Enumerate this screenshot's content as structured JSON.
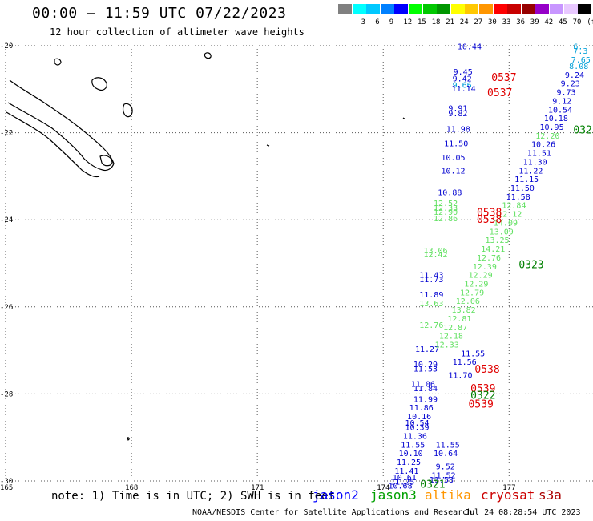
{
  "header": {
    "title": "00:00 — 11:59 UTC 07/22/2023",
    "subtitle": "12 hour collection of altimeter wave heights"
  },
  "legend": {
    "swatches": [
      {
        "color": "#808080",
        "label": ""
      },
      {
        "color": "#00ffff",
        "label": "3"
      },
      {
        "color": "#00c8ff",
        "label": "6"
      },
      {
        "color": "#0080ff",
        "label": "9"
      },
      {
        "color": "#0000ff",
        "label": "12"
      },
      {
        "color": "#00ff00",
        "label": "15"
      },
      {
        "color": "#00c800",
        "label": "18"
      },
      {
        "color": "#009600",
        "label": "21"
      },
      {
        "color": "#ffff00",
        "label": "24"
      },
      {
        "color": "#ffc800",
        "label": "27"
      },
      {
        "color": "#ff9600",
        "label": "30"
      },
      {
        "color": "#ff0000",
        "label": "33"
      },
      {
        "color": "#c80000",
        "label": "36"
      },
      {
        "color": "#960000",
        "label": "39"
      },
      {
        "color": "#9600c8",
        "label": "42"
      },
      {
        "color": "#c896ff",
        "label": "45"
      },
      {
        "color": "#e8c8ff",
        "label": "70"
      },
      {
        "color": "#000000",
        "label": "(ft)"
      }
    ]
  },
  "footer": {
    "note": "note: 1) Time is in UTC; 2) SWH is in feet",
    "satellites": [
      {
        "name": "jason2",
        "color": "#0000ff"
      },
      {
        "name": "jason3",
        "color": "#00a000"
      },
      {
        "name": "altika",
        "color": "#ff9600"
      },
      {
        "name": "cryosat",
        "color": "#cc0000"
      },
      {
        "name": "s3a",
        "color": "#aa0000"
      }
    ],
    "credit": "NOAA/NESDIS Center for Satellite Applications and Research",
    "timestamp": "Jul 24 08:28:54 UTC 2023"
  },
  "colors": {
    "blue": "#0000d0",
    "lightblue": "#00a0d8",
    "green": "#60e060",
    "darkgreen": "#008000",
    "red": "#e00000"
  },
  "chart_data": {
    "type": "scatter",
    "xlim": [
      165,
      179
    ],
    "ylim": [
      -30,
      -20
    ],
    "x_ticks": [
      {
        "value": 165,
        "label": "165"
      },
      {
        "value": 168,
        "label": "168"
      },
      {
        "value": 171,
        "label": "171"
      },
      {
        "value": 174,
        "label": "174"
      },
      {
        "value": 177,
        "label": "177"
      }
    ],
    "y_ticks": [
      {
        "value": -20,
        "label": "-20"
      },
      {
        "value": -22,
        "label": "-22"
      },
      {
        "value": -24,
        "label": "-24"
      },
      {
        "value": -26,
        "label": "-26"
      },
      {
        "value": -28,
        "label": "-28"
      },
      {
        "value": -30,
        "label": "-30"
      }
    ],
    "grid": true,
    "tracks": [
      {
        "name": "track-west",
        "labels": [
          {
            "lon": 175.77,
            "lat": -20.01,
            "text": "10.44",
            "color": "blue"
          },
          {
            "lon": 175.67,
            "lat": -20.59,
            "text": "9.45",
            "color": "blue"
          },
          {
            "lon": 175.65,
            "lat": -20.75,
            "text": "9.42",
            "color": "blue"
          },
          {
            "lon": 175.65,
            "lat": -20.89,
            "text": "9.66",
            "color": "lightblue"
          },
          {
            "lon": 175.63,
            "lat": -20.98,
            "text": "11.14",
            "color": "blue"
          },
          {
            "lon": 175.55,
            "lat": -21.43,
            "text": "9.91",
            "color": "blue"
          },
          {
            "lon": 175.55,
            "lat": -21.55,
            "text": "9.82",
            "color": "blue"
          },
          {
            "lon": 175.5,
            "lat": -21.91,
            "text": "11.98",
            "color": "blue"
          },
          {
            "lon": 175.45,
            "lat": -22.24,
            "text": "11.50",
            "color": "blue"
          },
          {
            "lon": 175.38,
            "lat": -22.56,
            "text": "10.05",
            "color": "blue"
          },
          {
            "lon": 175.38,
            "lat": -22.86,
            "text": "10.12",
            "color": "blue"
          },
          {
            "lon": 175.3,
            "lat": -23.36,
            "text": "10.88",
            "color": "blue"
          },
          {
            "lon": 175.2,
            "lat": -23.61,
            "text": "12.52",
            "color": "green"
          },
          {
            "lon": 175.2,
            "lat": -23.72,
            "text": "12.33",
            "color": "green"
          },
          {
            "lon": 175.2,
            "lat": -23.81,
            "text": "12.90",
            "color": "green"
          },
          {
            "lon": 175.2,
            "lat": -23.96,
            "text": "12.86",
            "color": "green"
          },
          {
            "lon": 174.96,
            "lat": -24.7,
            "text": "13.06",
            "color": "green"
          },
          {
            "lon": 174.96,
            "lat": -24.79,
            "text": "12.42",
            "color": "green"
          },
          {
            "lon": 174.86,
            "lat": -25.26,
            "text": "11.43",
            "color": "blue"
          },
          {
            "lon": 174.86,
            "lat": -25.36,
            "text": "11.73",
            "color": "blue"
          },
          {
            "lon": 174.86,
            "lat": -25.71,
            "text": "11.89",
            "color": "blue"
          },
          {
            "lon": 174.86,
            "lat": -25.91,
            "text": "13.63",
            "color": "green"
          },
          {
            "lon": 174.86,
            "lat": -26.41,
            "text": "12.76",
            "color": "green"
          },
          {
            "lon": 174.76,
            "lat": -26.96,
            "text": "11.27",
            "color": "blue"
          },
          {
            "lon": 174.72,
            "lat": -27.31,
            "text": "10.29",
            "color": "blue"
          },
          {
            "lon": 174.72,
            "lat": -27.41,
            "text": "11.53",
            "color": "blue"
          },
          {
            "lon": 174.66,
            "lat": -27.76,
            "text": "11.06",
            "color": "blue"
          },
          {
            "lon": 174.72,
            "lat": -27.86,
            "text": "11.84",
            "color": "blue"
          },
          {
            "lon": 174.72,
            "lat": -28.11,
            "text": "11.99",
            "color": "blue"
          },
          {
            "lon": 174.62,
            "lat": -28.31,
            "text": "11.86",
            "color": "blue"
          },
          {
            "lon": 174.57,
            "lat": -28.51,
            "text": "10.16",
            "color": "blue"
          },
          {
            "lon": 174.52,
            "lat": -28.66,
            "text": "10.54",
            "color": "blue"
          },
          {
            "lon": 174.52,
            "lat": -28.76,
            "text": "10.39",
            "color": "blue"
          },
          {
            "lon": 174.47,
            "lat": -28.96,
            "text": "11.36",
            "color": "blue"
          },
          {
            "lon": 174.42,
            "lat": -29.16,
            "text": "11.55",
            "color": "blue"
          },
          {
            "lon": 174.37,
            "lat": -29.36,
            "text": "10.10",
            "color": "blue"
          },
          {
            "lon": 174.32,
            "lat": -29.56,
            "text": "11.25",
            "color": "blue"
          },
          {
            "lon": 174.27,
            "lat": -29.76,
            "text": "11.41",
            "color": "blue"
          },
          {
            "lon": 174.22,
            "lat": -29.91,
            "text": "10.61",
            "color": "blue"
          },
          {
            "lon": 174.17,
            "lat": -30.01,
            "text": "11.25",
            "color": "blue"
          },
          {
            "lon": 174.12,
            "lat": -30.1,
            "text": "10.68",
            "color": "blue"
          }
        ]
      },
      {
        "name": "track-middle",
        "labels": [
          {
            "lon": 175.85,
            "lat": -27.06,
            "text": "11.55",
            "color": "blue"
          },
          {
            "lon": 175.65,
            "lat": -27.26,
            "text": "11.56",
            "color": "blue"
          },
          {
            "lon": 175.55,
            "lat": -27.56,
            "text": "11.70",
            "color": "blue"
          },
          {
            "lon": 175.25,
            "lat": -29.16,
            "text": "11.55",
            "color": "blue"
          },
          {
            "lon": 175.2,
            "lat": -29.36,
            "text": "10.64",
            "color": "blue"
          },
          {
            "lon": 175.25,
            "lat": -29.66,
            "text": "9.52",
            "color": "blue"
          },
          {
            "lon": 175.15,
            "lat": -29.86,
            "text": "11.52",
            "color": "blue"
          },
          {
            "lon": 175.1,
            "lat": -29.96,
            "text": "11.58",
            "color": "blue"
          }
        ]
      },
      {
        "name": "track-east",
        "labels": [
          {
            "lon": 178.53,
            "lat": -20.01,
            "text": "6.",
            "color": "lightblue"
          },
          {
            "lon": 178.53,
            "lat": -20.11,
            "text": "7.3",
            "color": "lightblue"
          },
          {
            "lon": 178.48,
            "lat": -20.31,
            "text": "7.65",
            "color": "lightblue"
          },
          {
            "lon": 178.43,
            "lat": -20.46,
            "text": "8.08",
            "color": "lightblue"
          },
          {
            "lon": 178.33,
            "lat": -20.66,
            "text": "9.24",
            "color": "blue"
          },
          {
            "lon": 178.23,
            "lat": -20.86,
            "text": "9.23",
            "color": "blue"
          },
          {
            "lon": 178.13,
            "lat": -21.06,
            "text": "9.73",
            "color": "blue"
          },
          {
            "lon": 178.03,
            "lat": -21.26,
            "text": "9.12",
            "color": "blue"
          },
          {
            "lon": 177.93,
            "lat": -21.46,
            "text": "10.54",
            "color": "blue"
          },
          {
            "lon": 177.83,
            "lat": -21.66,
            "text": "10.18",
            "color": "blue"
          },
          {
            "lon": 177.73,
            "lat": -21.86,
            "text": "10.95",
            "color": "blue"
          },
          {
            "lon": 177.63,
            "lat": -22.06,
            "text": "12.20",
            "color": "green"
          },
          {
            "lon": 177.53,
            "lat": -22.26,
            "text": "10.26",
            "color": "blue"
          },
          {
            "lon": 177.43,
            "lat": -22.46,
            "text": "11.51",
            "color": "blue"
          },
          {
            "lon": 177.33,
            "lat": -22.66,
            "text": "11.30",
            "color": "blue"
          },
          {
            "lon": 177.23,
            "lat": -22.86,
            "text": "11.22",
            "color": "blue"
          },
          {
            "lon": 177.13,
            "lat": -23.06,
            "text": "11.15",
            "color": "blue"
          },
          {
            "lon": 177.03,
            "lat": -23.26,
            "text": "11.50",
            "color": "blue"
          },
          {
            "lon": 176.93,
            "lat": -23.46,
            "text": "11.58",
            "color": "blue"
          },
          {
            "lon": 176.83,
            "lat": -23.66,
            "text": "12.84",
            "color": "green"
          },
          {
            "lon": 176.73,
            "lat": -23.86,
            "text": "12.12",
            "color": "green"
          },
          {
            "lon": 176.63,
            "lat": -24.06,
            "text": "14.09",
            "color": "green"
          },
          {
            "lon": 176.53,
            "lat": -24.26,
            "text": "13.09",
            "color": "green"
          },
          {
            "lon": 176.43,
            "lat": -24.46,
            "text": "13.25",
            "color": "green"
          },
          {
            "lon": 176.33,
            "lat": -24.66,
            "text": "14.21",
            "color": "green"
          },
          {
            "lon": 176.23,
            "lat": -24.86,
            "text": "12.76",
            "color": "green"
          },
          {
            "lon": 176.13,
            "lat": -25.06,
            "text": "12.39",
            "color": "green"
          },
          {
            "lon": 176.03,
            "lat": -25.26,
            "text": "12.29",
            "color": "green"
          },
          {
            "lon": 175.93,
            "lat": -25.46,
            "text": "12.29",
            "color": "green"
          },
          {
            "lon": 175.83,
            "lat": -25.66,
            "text": "12.79",
            "color": "green"
          },
          {
            "lon": 175.73,
            "lat": -25.86,
            "text": "12.06",
            "color": "green"
          },
          {
            "lon": 175.63,
            "lat": -26.06,
            "text": "13.82",
            "color": "green"
          },
          {
            "lon": 175.53,
            "lat": -26.26,
            "text": "12.81",
            "color": "green"
          },
          {
            "lon": 175.43,
            "lat": -26.46,
            "text": "12.87",
            "color": "green"
          },
          {
            "lon": 175.33,
            "lat": -26.66,
            "text": "12.18",
            "color": "green"
          },
          {
            "lon": 175.23,
            "lat": -26.86,
            "text": "12.33",
            "color": "green"
          }
        ]
      }
    ],
    "time_labels": [
      {
        "lon": 176.58,
        "lat": -20.72,
        "text": "0537",
        "color": "red"
      },
      {
        "lon": 176.48,
        "lat": -21.07,
        "text": "0537",
        "color": "red"
      },
      {
        "lon": 178.53,
        "lat": -21.92,
        "text": "0323",
        "color": "darkgreen"
      },
      {
        "lon": 176.23,
        "lat": -23.82,
        "text": "0538",
        "color": "red"
      },
      {
        "lon": 176.23,
        "lat": -23.98,
        "text": "0538",
        "color": "red"
      },
      {
        "lon": 177.23,
        "lat": -25.02,
        "text": "0323",
        "color": "darkgreen"
      },
      {
        "lon": 176.18,
        "lat": -27.42,
        "text": "0538",
        "color": "red"
      },
      {
        "lon": 176.08,
        "lat": -27.86,
        "text": "0539",
        "color": "red"
      },
      {
        "lon": 176.08,
        "lat": -28.02,
        "text": "0322",
        "color": "darkgreen"
      },
      {
        "lon": 176.03,
        "lat": -28.22,
        "text": "0539",
        "color": "red"
      },
      {
        "lon": 174.88,
        "lat": -30.06,
        "text": "0321",
        "color": "darkgreen"
      }
    ]
  }
}
